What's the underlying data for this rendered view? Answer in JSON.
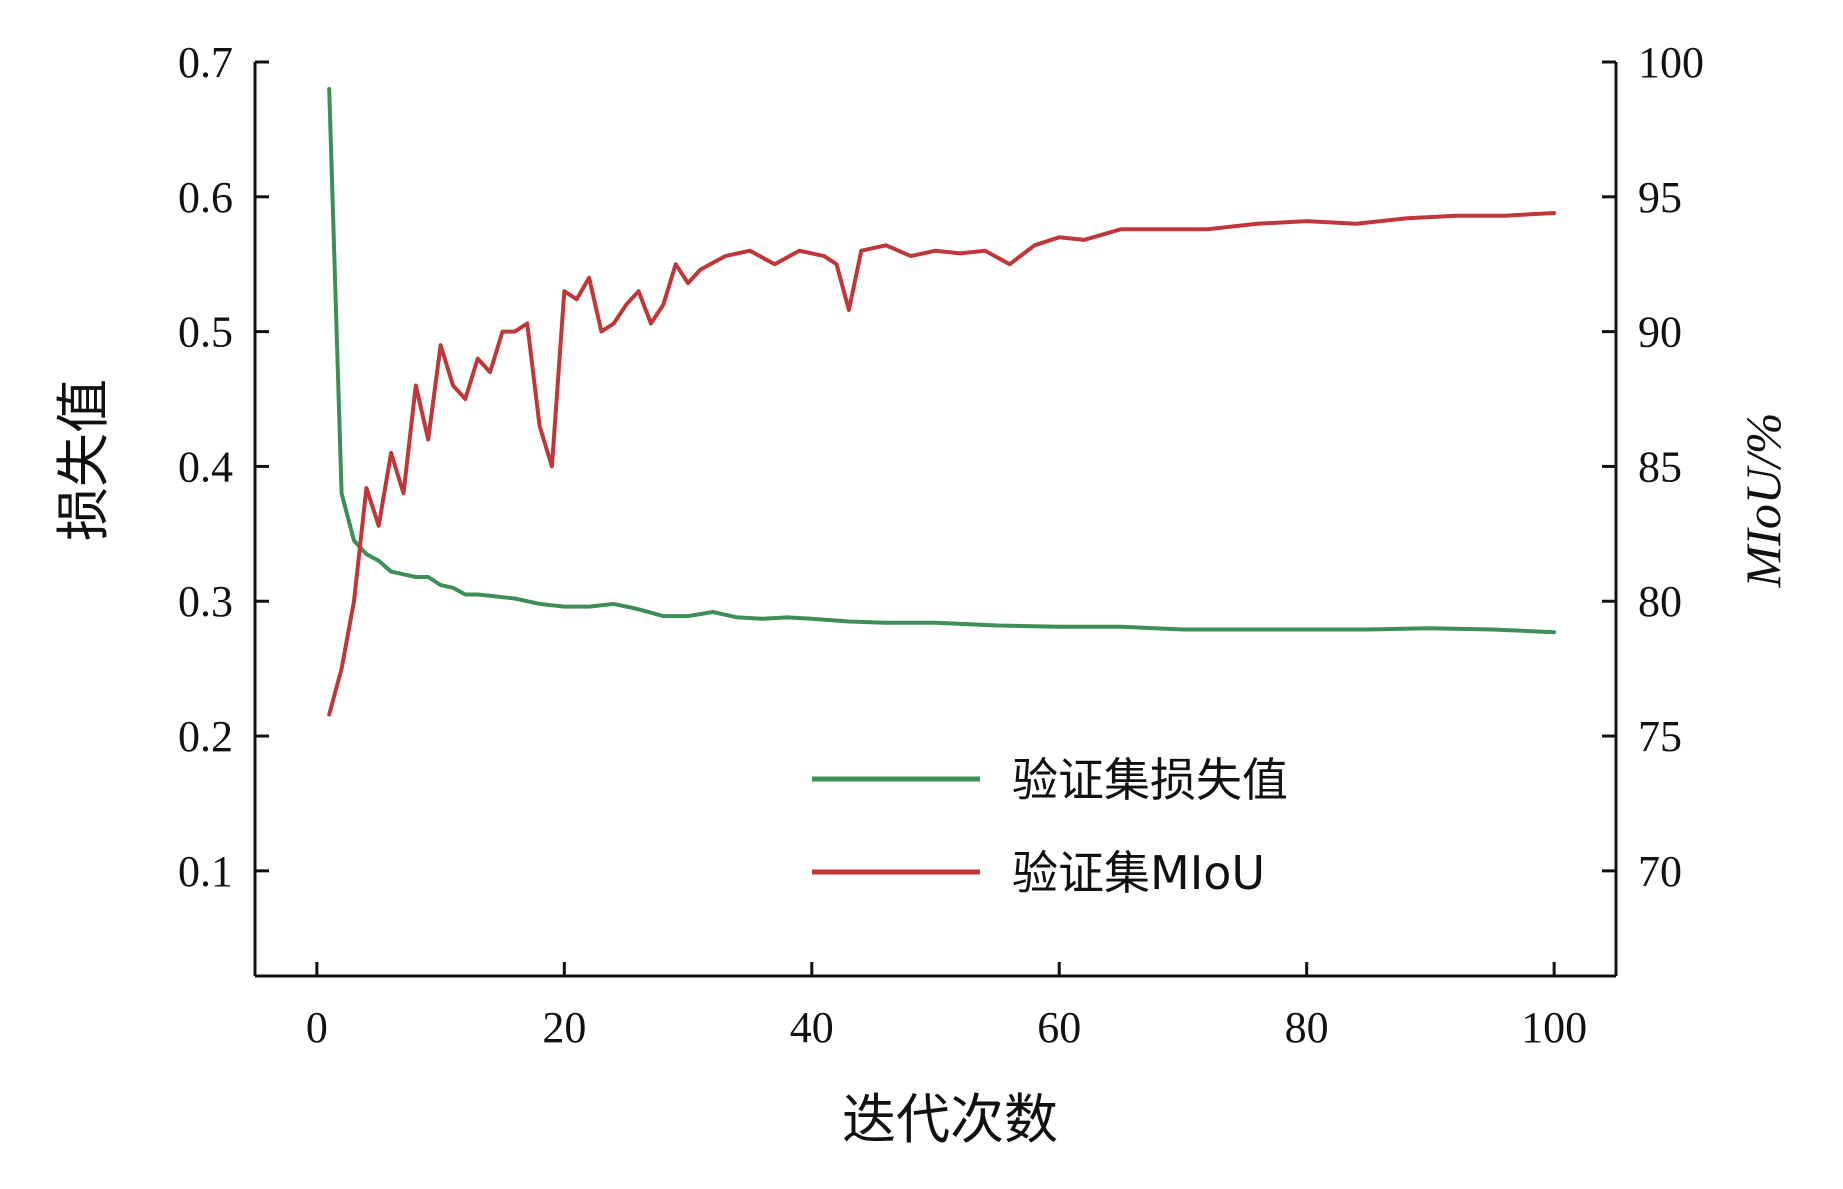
{
  "chart_data": {
    "type": "line",
    "xlabel": "迭代次数",
    "ylabel_left": "损失值",
    "ylabel_right": "MIoU/%",
    "xlim": [
      -5,
      105
    ],
    "ylim_left": [
      0.022,
      0.7
    ],
    "ylim_right": [
      66.1,
      100
    ],
    "x_ticks": [
      0,
      20,
      40,
      60,
      80,
      100
    ],
    "y_left_ticks": [
      0.1,
      0.2,
      0.3,
      0.4,
      0.5,
      0.6,
      0.7
    ],
    "y_right_ticks": [
      70,
      75,
      80,
      85,
      90,
      95,
      100
    ],
    "grid": false,
    "legend_position": "lower-right",
    "series": [
      {
        "name": "验证集损失值",
        "axis": "left",
        "color": "#3e8e57",
        "x": [
          1,
          2,
          3,
          4,
          5,
          6,
          7,
          8,
          9,
          10,
          11,
          12,
          13,
          14,
          15,
          16,
          17,
          18,
          19,
          20,
          22,
          24,
          26,
          28,
          30,
          32,
          34,
          36,
          38,
          40,
          43,
          46,
          50,
          55,
          60,
          65,
          70,
          75,
          80,
          85,
          90,
          95,
          100
        ],
        "y": [
          0.68,
          0.38,
          0.345,
          0.335,
          0.33,
          0.322,
          0.32,
          0.318,
          0.318,
          0.312,
          0.31,
          0.305,
          0.305,
          0.304,
          0.303,
          0.302,
          0.3,
          0.298,
          0.297,
          0.296,
          0.296,
          0.298,
          0.294,
          0.289,
          0.289,
          0.292,
          0.288,
          0.287,
          0.288,
          0.287,
          0.285,
          0.284,
          0.284,
          0.282,
          0.281,
          0.281,
          0.279,
          0.279,
          0.279,
          0.279,
          0.28,
          0.279,
          0.277
        ]
      },
      {
        "name": "验证集MIoU",
        "axis": "right",
        "color": "#c0363a",
        "x": [
          1,
          2,
          3,
          4,
          5,
          6,
          7,
          8,
          9,
          10,
          11,
          12,
          13,
          14,
          15,
          16,
          17,
          18,
          19,
          20,
          21,
          22,
          23,
          24,
          25,
          26,
          27,
          28,
          29,
          30,
          31,
          33,
          35,
          37,
          39,
          41,
          42,
          43,
          44,
          46,
          48,
          50,
          52,
          54,
          56,
          58,
          60,
          62,
          65,
          68,
          72,
          76,
          80,
          84,
          88,
          92,
          96,
          100
        ],
        "y": [
          75.8,
          77.5,
          80.0,
          84.2,
          82.8,
          85.5,
          84.0,
          88.0,
          86.0,
          89.5,
          88.0,
          87.5,
          89.0,
          88.5,
          90.0,
          90.0,
          90.3,
          86.5,
          85.0,
          91.5,
          91.2,
          92.0,
          90.0,
          90.3,
          91.0,
          91.5,
          90.3,
          91.0,
          92.5,
          91.8,
          92.3,
          92.8,
          93.0,
          92.5,
          93.0,
          92.8,
          92.5,
          90.8,
          93.0,
          93.2,
          92.8,
          93.0,
          92.9,
          93.0,
          92.5,
          93.2,
          93.5,
          93.4,
          93.8,
          93.8,
          93.8,
          94.0,
          94.1,
          94.0,
          94.2,
          94.3,
          94.3,
          94.4
        ]
      }
    ]
  }
}
